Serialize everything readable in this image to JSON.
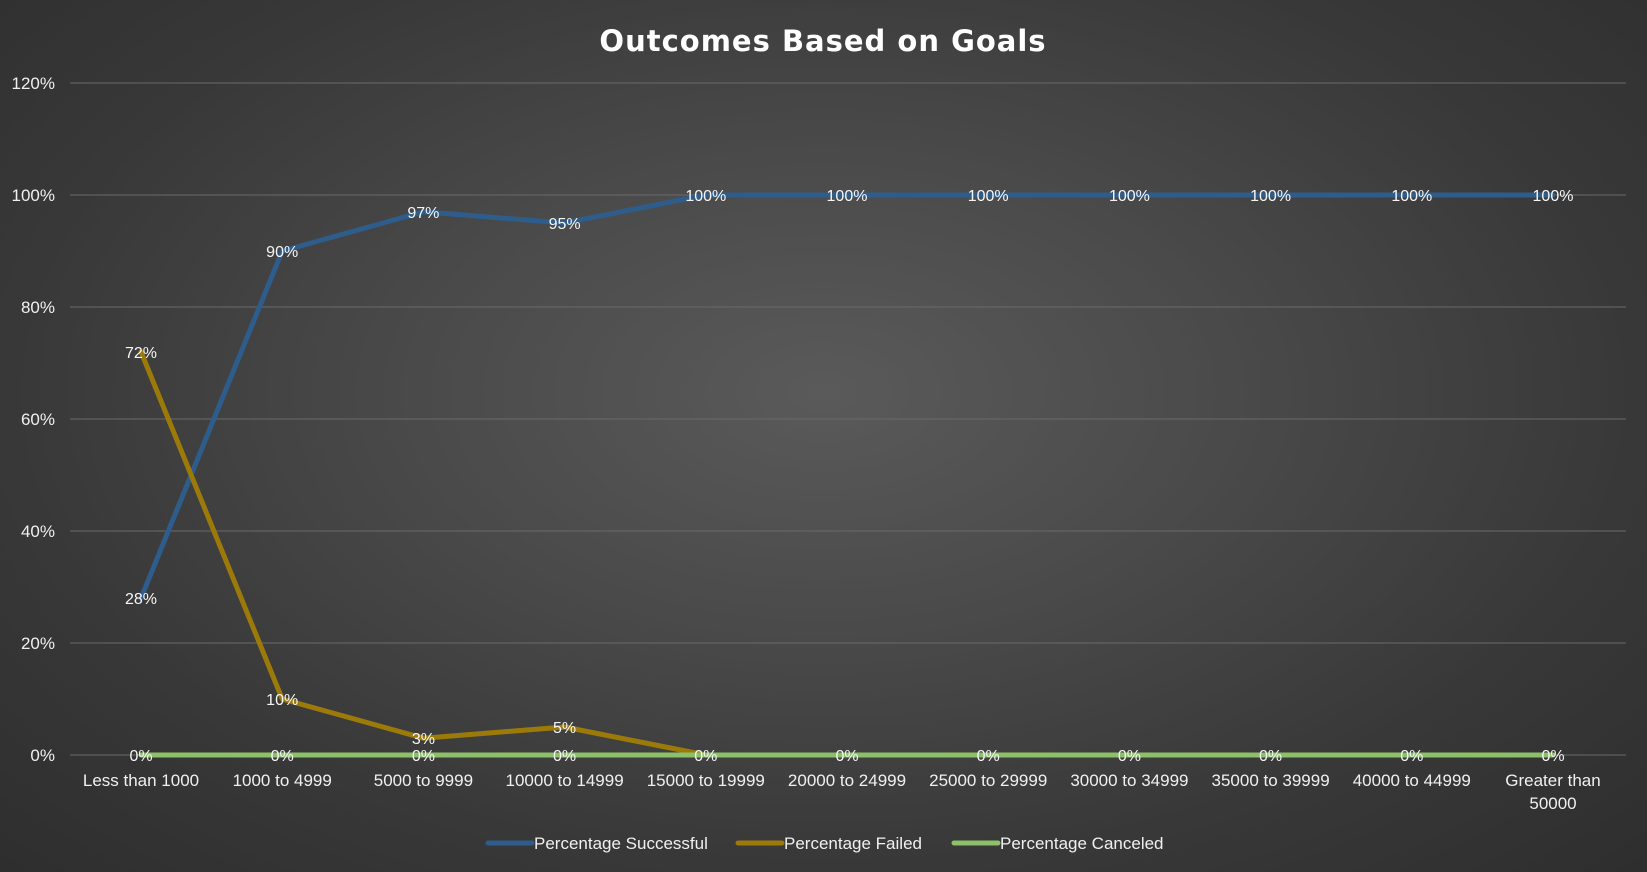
{
  "chart_data": {
    "type": "line",
    "title": "Outcomes Based on Goals",
    "xlabel": "",
    "ylabel": "",
    "ylim": [
      0,
      120
    ],
    "y_ticks": [
      "0%",
      "20%",
      "40%",
      "60%",
      "80%",
      "100%",
      "120%"
    ],
    "y_tick_values": [
      0,
      20,
      40,
      60,
      80,
      100,
      120
    ],
    "categories": [
      "Less than 1000",
      "1000 to 4999",
      "5000 to 9999",
      "10000 to 14999",
      "15000 to 19999",
      "20000 to 24999",
      "25000 to 29999",
      "30000 to 34999",
      "35000 to 39999",
      "40000 to 44999",
      "Greater than 50000"
    ],
    "series": [
      {
        "name": "Percentage Successful",
        "color": "#2e5d8c",
        "values": [
          28,
          90,
          97,
          95,
          100,
          100,
          100,
          100,
          100,
          100,
          100
        ],
        "labels": [
          "28%",
          "90%",
          "97%",
          "95%",
          "100%",
          "100%",
          "100%",
          "100%",
          "100%",
          "100%",
          "100%"
        ]
      },
      {
        "name": "Percentage Failed",
        "color": "#9c7a0a",
        "values": [
          72,
          10,
          3,
          5,
          0,
          0,
          0,
          0,
          0,
          0,
          0
        ],
        "labels": [
          "72%",
          "10%",
          "3%",
          "5%",
          "0%",
          "0%",
          "0%",
          "0%",
          "0%",
          "0%",
          "0%"
        ]
      },
      {
        "name": "Percentage Canceled",
        "color": "#8cc069",
        "values": [
          0,
          0,
          0,
          0,
          0,
          0,
          0,
          0,
          0,
          0,
          0
        ],
        "labels": [
          "0%",
          "0%",
          "0%",
          "0%",
          "0%",
          "0%",
          "0%",
          "0%",
          "0%",
          "0%",
          "0%"
        ]
      }
    ],
    "grid": true,
    "legend": "bottom"
  }
}
